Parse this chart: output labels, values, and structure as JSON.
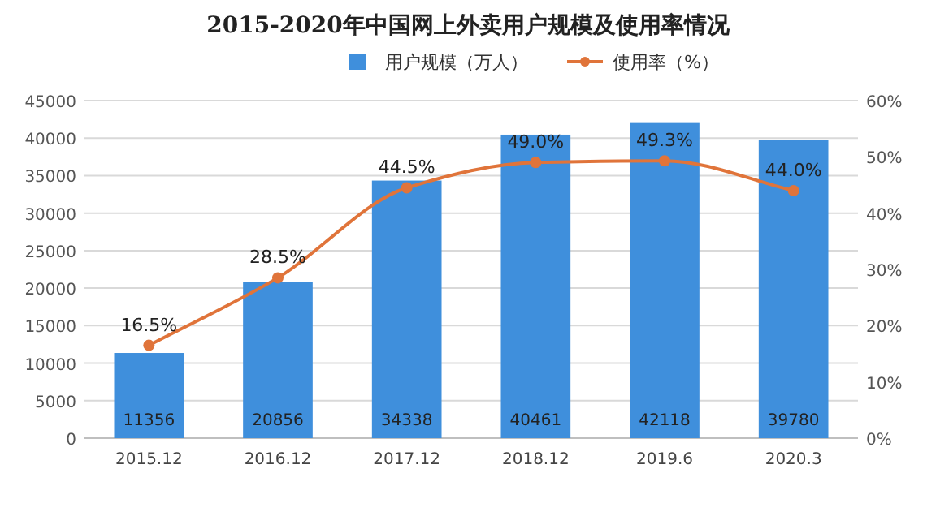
{
  "chart_data": {
    "type": "bar",
    "title": "2015-2020年中国网上外卖用户规模及使用率情况",
    "categories": [
      "2015.12",
      "2016.12",
      "2017.12",
      "2018.12",
      "2019.6",
      "2020.3"
    ],
    "series": [
      {
        "name": "用户规模（万人）",
        "color": "#3f8fdc",
        "values": [
          11356,
          20856,
          34338,
          40461,
          42118,
          39780
        ],
        "value_labels": [
          "11356",
          "20856",
          "34338",
          "40461",
          "42118",
          "39780"
        ]
      },
      {
        "name": "使用率（%）",
        "type": "line",
        "axis": "y2",
        "color": "#e0743a",
        "marker": "circle",
        "values": [
          16.5,
          28.5,
          44.5,
          49.0,
          49.3,
          44.0
        ],
        "value_labels": [
          "16.5%",
          "28.5%",
          "44.5%",
          "49.0%",
          "49.3%",
          "44.0%"
        ]
      }
    ],
    "ylim": [
      0,
      45000
    ],
    "yticks": [
      0,
      5000,
      10000,
      15000,
      20000,
      25000,
      30000,
      35000,
      40000,
      45000
    ],
    "y2lim": [
      0,
      60
    ],
    "y2ticks": [
      {
        "value": 0,
        "label": "0%"
      },
      {
        "value": 10,
        "label": "10%"
      },
      {
        "value": 20,
        "label": "20%"
      },
      {
        "value": 30,
        "label": "30%"
      },
      {
        "value": 40,
        "label": "40%"
      },
      {
        "value": 50,
        "label": "50%"
      },
      {
        "value": 60,
        "label": "60%"
      }
    ],
    "grid": "y",
    "legend": "top"
  }
}
